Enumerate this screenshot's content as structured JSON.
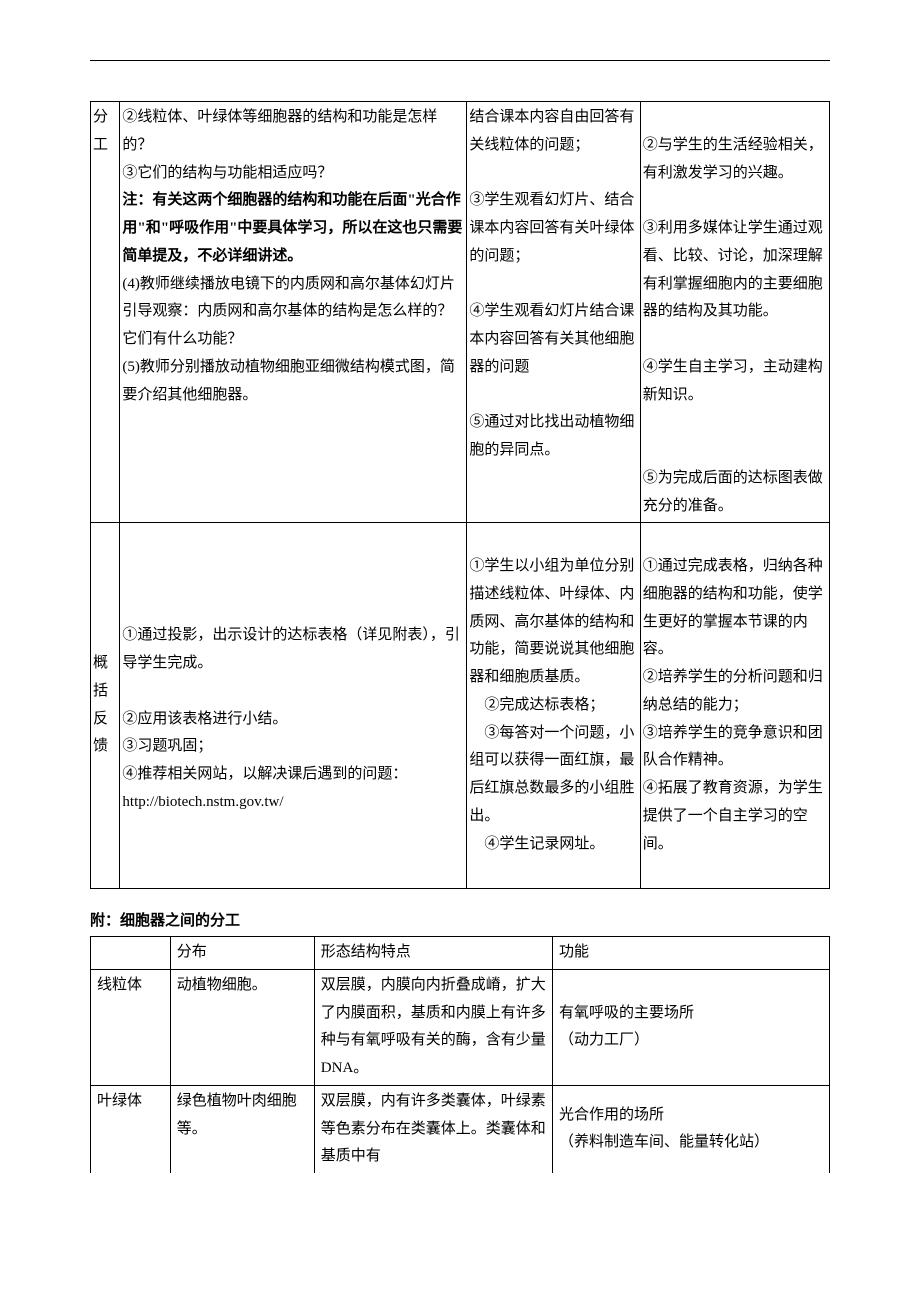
{
  "main_table": {
    "rows": [
      {
        "label": "分工",
        "col1_lines": [
          {
            "text": "②线粒体、叶绿体等细胞器的结构和功能是怎样的？",
            "bold": false
          },
          {
            "text": "③它们的结构与功能相适应吗？",
            "bold": false
          },
          {
            "text": "注：有关这两个细胞器的结构和功能在后面\"光合作用\"和\"呼吸作用\"中要具体学习，所以在这也只需要简单提及，不必详细讲述。",
            "bold": true
          },
          {
            "text": "(4)教师继续播放电镜下的内质网和高尔基体幻灯片",
            "bold": false
          },
          {
            "text": "引导观察：内质网和高尔基体的结构是怎么样的？它们有什么功能？",
            "bold": false
          },
          {
            "text": "(5)教师分别播放动植物细胞亚细微结构模式图，简要介绍其他细胞器。",
            "bold": false
          }
        ],
        "col2_lines": [
          "结合课本内容自由回答有关线粒体的问题；",
          "",
          "③学生观看幻灯片、结合课本内容回答有关叶绿体的问题；",
          "",
          "④学生观看幻灯片结合课本内容回答有关其他细胞器的问题",
          "",
          "⑤通过对比找出动植物细胞的异同点。"
        ],
        "col3_lines": [
          "",
          "②与学生的生活经验相关，有利激发学习的兴趣。",
          "",
          "③利用多媒体让学生通过观看、比较、讨论，加深理解有利掌握细胞内的主要细胞器的结构及其功能。",
          "",
          "④学生自主学习，主动建构新知识。",
          "",
          "",
          "⑤为完成后面的达标图表做充分的准备。"
        ]
      },
      {
        "label": "概括反馈",
        "col1_lines": [
          {
            "text": "",
            "bold": false
          },
          {
            "text": "①通过投影，出示设计的达标表格（详见附表），引导学生完成。",
            "bold": false
          },
          {
            "text": "",
            "bold": false
          },
          {
            "text": "②应用该表格进行小结。",
            "bold": false
          },
          {
            "text": "③习题巩固；",
            "bold": false
          },
          {
            "text": "④推荐相关网站，以解决课后遇到的问题：",
            "bold": false
          },
          {
            "text": "http://biotech.nstm.gov.tw/",
            "bold": false
          }
        ],
        "col2_lines": [
          "",
          "①学生以小组为单位分别描述线粒体、叶绿体、内质网、高尔基体的结构和功能，简要说说其他细胞器和细胞质基质。",
          "　②完成达标表格；",
          "　③每答对一个问题，小组可以获得一面红旗，最后红旗总数最多的小组胜出。",
          "　④学生记录网址。",
          ""
        ],
        "col3_lines": [
          "",
          "①通过完成表格，归纳各种细胞器的结构和功能，使学生更好的掌握本节课的内容。",
          "②培养学生的分析问题和归纳总结的能力；",
          "③培养学生的竞争意识和团队合作精神。",
          "④拓展了教育资源，为学生提供了一个自主学习的空间。"
        ]
      }
    ]
  },
  "appendix": {
    "heading": "附：细胞器之间的分工",
    "header": [
      "",
      "分布",
      "形态结构特点",
      "功能"
    ],
    "rows": [
      {
        "name": "线粒体",
        "dist": "动植物细胞。",
        "struct": "双层膜，内膜向内折叠成嵴，扩大了内膜面积，基质和内膜上有许多种与有氧呼吸有关的酶，含有少量DNA。",
        "func": "有氧呼吸的主要场所\n（动力工厂）"
      },
      {
        "name": "叶绿体",
        "dist": "绿色植物叶肉细胞等。",
        "struct": "双层膜，内有许多类囊体，叶绿素等色素分布在类囊体上。类囊体和基质中有",
        "func": "光合作用的场所\n（养料制造车间、能量转化站）"
      }
    ]
  }
}
